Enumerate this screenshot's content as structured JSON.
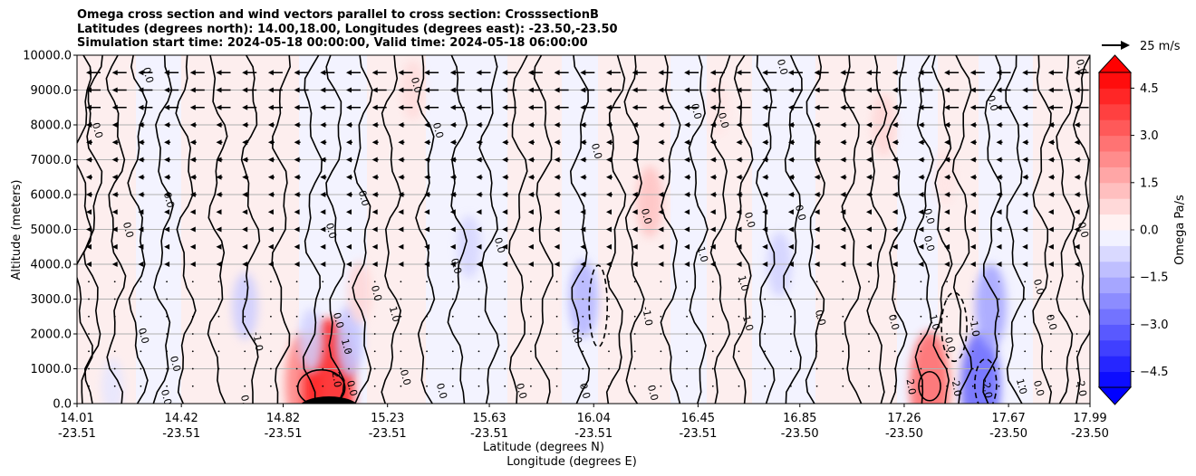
{
  "title_lines": [
    "Omega cross section and wind vectors parallel to cross section: CrosssectionB",
    "Latitudes (degrees north): 14.00,18.00, Longitudes (degrees east): -23.50,-23.50",
    "Simulation start time: 2024-05-18 00:00:00, Valid time: 2024-05-18 06:00:00"
  ],
  "chart_data": {
    "type": "contourf",
    "title": "Omega cross section and wind vectors parallel to cross section: CrosssectionB",
    "ylabel": "Altitude (meters)",
    "xlabel_lines": [
      "Latitude (degrees N)",
      "Longitude (degrees E)"
    ],
    "ylim": [
      0,
      10000
    ],
    "y_ticks": [
      "0.0",
      "1000.0",
      "2000.0",
      "3000.0",
      "4000.0",
      "5000.0",
      "6000.0",
      "7000.0",
      "8000.0",
      "9000.0",
      "10000.0"
    ],
    "x_ticks": [
      {
        "lat": "14.01",
        "lon": "-23.51"
      },
      {
        "lat": "14.42",
        "lon": "-23.51"
      },
      {
        "lat": "14.82",
        "lon": "-23.51"
      },
      {
        "lat": "15.23",
        "lon": "-23.51"
      },
      {
        "lat": "15.63",
        "lon": "-23.51"
      },
      {
        "lat": "16.04",
        "lon": "-23.51"
      },
      {
        "lat": "16.45",
        "lon": "-23.51"
      },
      {
        "lat": "16.85",
        "lon": "-23.50"
      },
      {
        "lat": "17.26",
        "lon": "-23.50"
      },
      {
        "lat": "17.67",
        "lon": "-23.50"
      },
      {
        "lat": "17.99",
        "lon": "-23.50"
      }
    ],
    "grid": "horizontal",
    "colorbar": {
      "label": "Omega Pa/s",
      "range": [
        -5,
        5
      ],
      "ticks": [
        "-4.5",
        "-3.0",
        "-1.5",
        "0.0",
        "1.5",
        "3.0",
        "4.5"
      ],
      "extend": "both",
      "cmap": "bwr",
      "position": "right"
    },
    "quiver_key": {
      "label": "25 m/s"
    },
    "contour_labels": [
      "0.0",
      "1.0",
      "-1.0",
      "2.0",
      "-2.0"
    ],
    "omega_patches": [
      {
        "lat": 14.15,
        "alt": 500,
        "value": -0.5
      },
      {
        "lat": 14.9,
        "alt": 600,
        "value": 2.5
      },
      {
        "lat": 15.0,
        "alt": 400,
        "value": 4.5
      },
      {
        "lat": 15.08,
        "alt": 1800,
        "value": -1.2
      },
      {
        "lat": 15.12,
        "alt": 3200,
        "value": 0.8
      },
      {
        "lat": 14.67,
        "alt": 2800,
        "value": -1.0
      },
      {
        "lat": 14.93,
        "alt": 1800,
        "value": -0.9
      },
      {
        "lat": 15.55,
        "alt": 4500,
        "value": -0.8
      },
      {
        "lat": 16.0,
        "alt": 3000,
        "value": -1.5
      },
      {
        "lat": 16.26,
        "alt": 5800,
        "value": 1.2
      },
      {
        "lat": 16.77,
        "alt": 4000,
        "value": -0.9
      },
      {
        "lat": 15.33,
        "alt": 9000,
        "value": 0.7
      },
      {
        "lat": 17.56,
        "alt": 500,
        "value": -3.0
      },
      {
        "lat": 17.6,
        "alt": 2800,
        "value": -1.8
      },
      {
        "lat": 17.36,
        "alt": 500,
        "value": 3.0
      },
      {
        "lat": 17.18,
        "alt": 8000,
        "value": 0.8
      },
      {
        "lat": 17.42,
        "alt": 6500,
        "value": 0.5
      },
      {
        "lat": 16.53,
        "alt": 8500,
        "value": 0.5
      }
    ]
  }
}
